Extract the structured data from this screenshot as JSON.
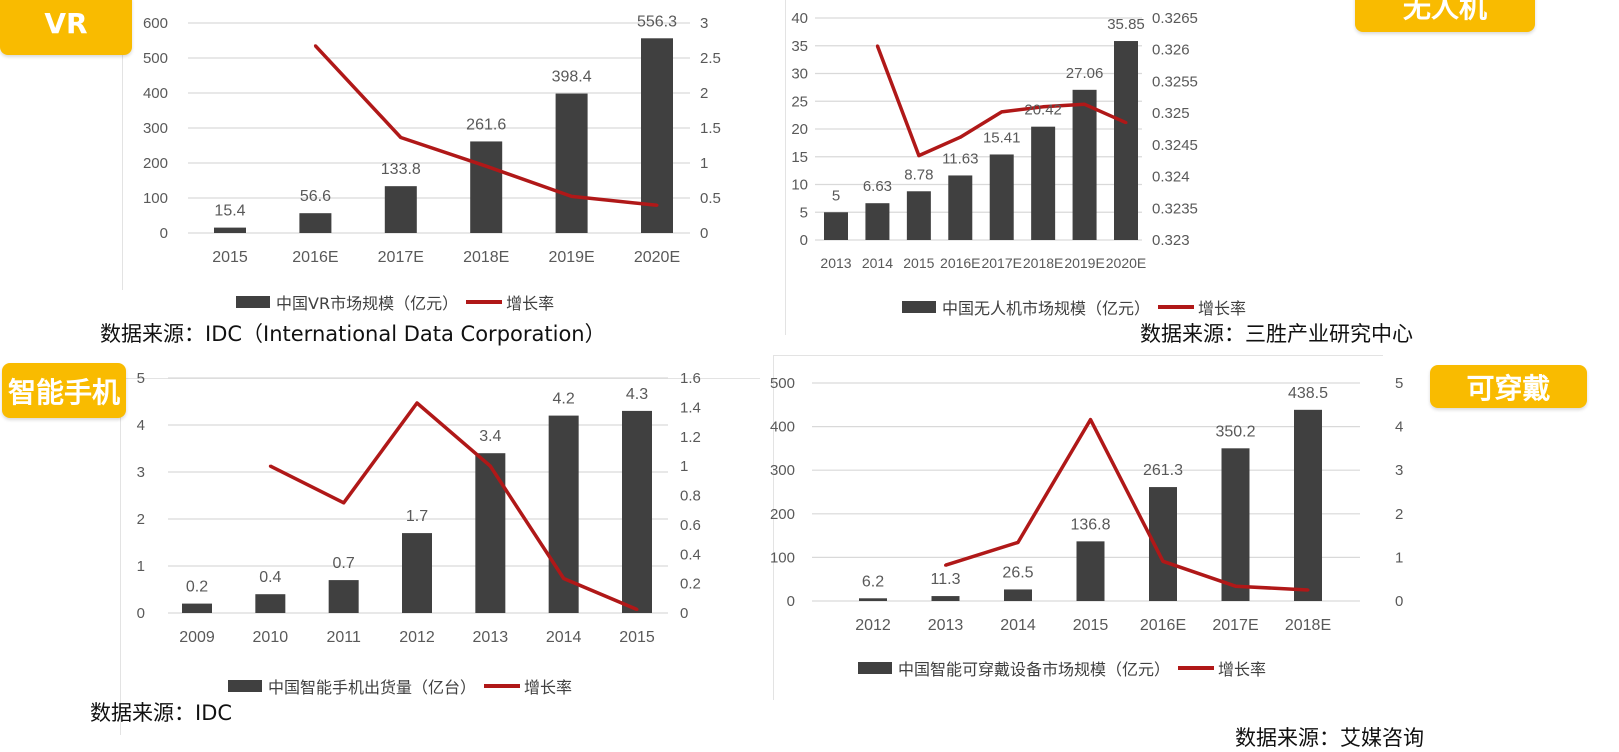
{
  "badges": [
    "VR",
    "无人机",
    "智能手机",
    "可穿戴"
  ],
  "sources": [
    "数据来源：IDC（International Data Corporation）",
    "数据来源：三胜产业研究中心",
    "数据来源：IDC",
    "数据来源：艾媒咨询"
  ],
  "colors": {
    "bar": "#404040",
    "line": "#B01818",
    "badge": "#F9BB00"
  },
  "chart_data": [
    {
      "type": "bar+line",
      "categories": [
        "2015",
        "2016E",
        "2017E",
        "2018E",
        "2019E",
        "2020E"
      ],
      "series": [
        {
          "name": "中国VR市场规模（亿元）",
          "type": "bar",
          "axis": "left",
          "values": [
            15.4,
            56.6,
            133.8,
            261.6,
            398.4,
            556.3
          ]
        },
        {
          "name": "增长率",
          "type": "line",
          "axis": "right",
          "values": [
            null,
            2.675,
            1.364,
            0.955,
            0.523,
            0.396
          ]
        }
      ],
      "y_left_ticks": [
        "0",
        "100",
        "200",
        "300",
        "400",
        "500",
        "600"
      ],
      "y_right_ticks": [
        "0",
        "0.5",
        "1",
        "1.5",
        "2",
        "2.5",
        "3"
      ],
      "ylim_left": [
        0,
        600
      ],
      "ylim_right": [
        0,
        3
      ],
      "grid": true,
      "legend": "bottom"
    },
    {
      "type": "bar+line",
      "categories": [
        "2013",
        "2014",
        "2015",
        "2016E",
        "2017E",
        "2018E",
        "2019E",
        "2020E"
      ],
      "series": [
        {
          "name": "中国无人机市场规模（亿元）",
          "type": "bar",
          "axis": "left",
          "values": [
            5,
            6.63,
            8.78,
            11.63,
            15.41,
            20.42,
            27.06,
            35.85
          ]
        },
        {
          "name": "增长率",
          "type": "line",
          "axis": "right",
          "values": [
            null,
            0.32606,
            0.32433,
            0.32462,
            0.32502,
            0.3251,
            0.32514,
            0.32485
          ]
        }
      ],
      "y_left_ticks": [
        "0",
        "5",
        "10",
        "15",
        "20",
        "25",
        "30",
        "35",
        "40"
      ],
      "y_right_ticks": [
        "0.323",
        "0.3235",
        "0.324",
        "0.3245",
        "0.325",
        "0.3255",
        "0.326",
        "0.3265"
      ],
      "ylim_left": [
        0,
        40
      ],
      "ylim_right": [
        0.323,
        0.3265
      ],
      "grid": true,
      "legend": "bottom"
    },
    {
      "type": "bar+line",
      "categories": [
        "2009",
        "2010",
        "2011",
        "2012",
        "2013",
        "2014",
        "2015"
      ],
      "series": [
        {
          "name": "中国智能手机出货量（亿台）",
          "type": "bar",
          "axis": "left",
          "values": [
            0.2,
            0.4,
            0.7,
            1.7,
            3.4,
            4.2,
            4.3
          ]
        },
        {
          "name": "增长率",
          "type": "line",
          "axis": "right",
          "values": [
            null,
            1.0,
            0.75,
            1.43,
            1.0,
            0.235,
            0.024
          ]
        }
      ],
      "y_left_ticks": [
        "0",
        "1",
        "2",
        "3",
        "4",
        "5"
      ],
      "y_right_ticks": [
        "0",
        "0.2",
        "0.4",
        "0.6",
        "0.8",
        "1",
        "1.2",
        "1.4",
        "1.6"
      ],
      "ylim_left": [
        0,
        5
      ],
      "ylim_right": [
        0,
        1.6
      ],
      "grid": true,
      "legend": "bottom"
    },
    {
      "type": "bar+line",
      "categories": [
        "2012",
        "2013",
        "2014",
        "2015",
        "2016E",
        "2017E",
        "2018E"
      ],
      "series": [
        {
          "name": "中国智能可穿戴设备市场规模（亿元）",
          "type": "bar",
          "axis": "left",
          "values": [
            6.2,
            11.3,
            26.5,
            136.8,
            261.3,
            350.2,
            438.5
          ]
        },
        {
          "name": "增长率",
          "type": "line",
          "axis": "right",
          "values": [
            null,
            0.82,
            1.345,
            4.16,
            0.91,
            0.34,
            0.252
          ]
        }
      ],
      "y_left_ticks": [
        "0",
        "100",
        "200",
        "300",
        "400",
        "500"
      ],
      "y_right_ticks": [
        "0",
        "1",
        "2",
        "3",
        "4",
        "5"
      ],
      "ylim_left": [
        0,
        500
      ],
      "ylim_right": [
        0,
        5
      ],
      "grid": true,
      "legend": "bottom"
    }
  ]
}
